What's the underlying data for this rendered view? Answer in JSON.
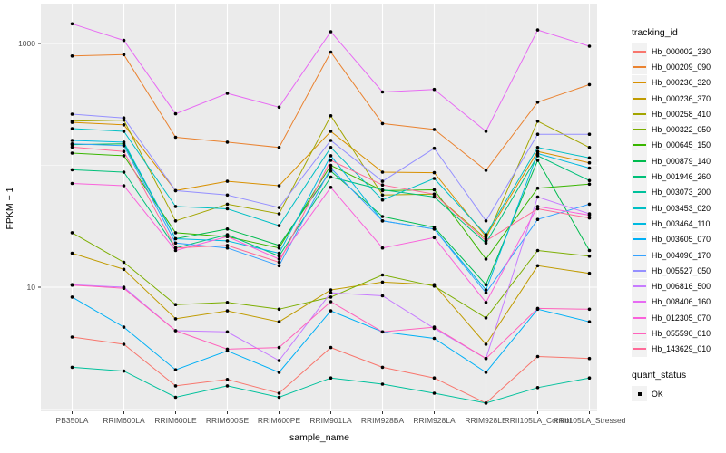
{
  "chart_data": {
    "type": "line",
    "xlabel": "sample_name",
    "ylabel": "FPKM + 1",
    "y_scale": "log10",
    "y_axis_ticks": [
      1000,
      10
    ],
    "y_minor_gridlines": [
      100,
      1
    ],
    "ylim": [
      1,
      2100
    ],
    "grid": "on",
    "panel_bg": "#EBEBEB",
    "grid_color": "#FFFFFF",
    "point_color": "#000000",
    "axis_text_color": "#4D4D4D",
    "categories": [
      "PB350LA",
      "RRIM600LA",
      "RRIM600LE",
      "RRIM600SE",
      "RRIM600PE",
      "RRIM901LA",
      "RRIM928BA",
      "RRIM928LA",
      "RRIM928LE",
      "RRII105LA_Control",
      "RRII105LA_Stressed"
    ],
    "legend": {
      "color_title": "tracking_id",
      "shape_title": "quant_status",
      "shape_items": [
        {
          "label": "OK",
          "shape": "black-square-point"
        }
      ],
      "position": "right"
    },
    "series": [
      {
        "name": "Hb_000002_330",
        "color": "#F8766D",
        "values": [
          3.9,
          3.4,
          1.55,
          1.75,
          1.35,
          3.2,
          2.2,
          1.8,
          1.12,
          2.7,
          2.6
        ]
      },
      {
        "name": "Hb_000209_090",
        "color": "#EA8331",
        "values": [
          790,
          810,
          170,
          155,
          140,
          850,
          220,
          197,
          91,
          330,
          460
        ]
      },
      {
        "name": "Hb_000236_320",
        "color": "#D89000",
        "values": [
          225,
          215,
          62,
          74,
          68,
          190,
          88,
          87,
          26,
          130,
          105
        ]
      },
      {
        "name": "Hb_000236_370",
        "color": "#C09B00",
        "values": [
          19,
          14,
          5.5,
          6.4,
          5.2,
          9.5,
          11,
          10.5,
          3.4,
          15,
          13
        ]
      },
      {
        "name": "Hb_000258_410",
        "color": "#A3A500",
        "values": [
          230,
          235,
          35,
          48,
          40,
          255,
          57,
          58,
          25,
          230,
          140
        ]
      },
      {
        "name": "Hb_000322_050",
        "color": "#7CAE00",
        "values": [
          28,
          16,
          7.2,
          7.5,
          6.6,
          8.3,
          12.6,
          10.2,
          5.6,
          20,
          18
        ]
      },
      {
        "name": "Hb_000645_150",
        "color": "#39B600",
        "values": [
          126,
          120,
          28,
          26,
          21,
          100,
          62,
          63,
          17,
          65,
          70
        ]
      },
      {
        "name": "Hb_000879_140",
        "color": "#00BB4E",
        "values": [
          148,
          150,
          25,
          30,
          22,
          90,
          38,
          31,
          10.5,
          110,
          20
        ]
      },
      {
        "name": "Hb_001946_260",
        "color": "#00C079",
        "values": [
          92,
          88,
          21,
          27,
          18,
          80,
          63,
          55,
          23,
          120,
          75
        ]
      },
      {
        "name": "Hb_003073_200",
        "color": "#00C19C",
        "values": [
          2.2,
          2.05,
          1.25,
          1.55,
          1.25,
          1.8,
          1.6,
          1.35,
          1.12,
          1.5,
          1.8
        ]
      },
      {
        "name": "Hb_003453_020",
        "color": "#00BFC4",
        "values": [
          200,
          190,
          46,
          44,
          32,
          140,
          52,
          78,
          27,
          140,
          115
        ]
      },
      {
        "name": "Hb_003464_110",
        "color": "#00BAE0",
        "values": [
          160,
          155,
          25,
          24,
          19,
          120,
          35,
          30,
          9.5,
          125,
          95
        ]
      },
      {
        "name": "Hb_003605_070",
        "color": "#00B0F6",
        "values": [
          8.3,
          4.7,
          2.1,
          3.0,
          2.0,
          6.4,
          4.3,
          3.8,
          2.0,
          6.6,
          5.2
        ]
      },
      {
        "name": "Hb_004096_170",
        "color": "#35A2FF",
        "values": [
          150,
          145,
          23,
          21,
          15,
          95,
          35,
          30,
          9.0,
          36,
          48
        ]
      },
      {
        "name": "Hb_005527_050",
        "color": "#9590FF",
        "values": [
          263,
          245,
          62,
          57,
          45,
          160,
          74,
          138,
          35,
          180,
          180
        ]
      },
      {
        "name": "Hb_006816_500",
        "color": "#C77CFF",
        "values": [
          10.5,
          10.0,
          4.4,
          4.3,
          2.5,
          9.0,
          8.5,
          4.6,
          2.6,
          55,
          40
        ]
      },
      {
        "name": "Hb_008406_160",
        "color": "#E76BF3",
        "values": [
          1450,
          1060,
          265,
          390,
          300,
          1250,
          400,
          420,
          190,
          1290,
          950
        ]
      },
      {
        "name": "Hb_012305_070",
        "color": "#FA62DB",
        "values": [
          71,
          68,
          20,
          26,
          17,
          66,
          21,
          25.5,
          7.5,
          46,
          39
        ]
      },
      {
        "name": "Hb_055590_010",
        "color": "#FF62BC",
        "values": [
          10.4,
          9.8,
          4.4,
          3.1,
          3.2,
          7.6,
          4.3,
          4.7,
          2.6,
          6.7,
          6.6
        ]
      },
      {
        "name": "Hb_143629_010",
        "color": "#FF6A98",
        "values": [
          141,
          130,
          21,
          22,
          16,
          110,
          69,
          58,
          24,
          44,
          37
        ]
      }
    ]
  }
}
